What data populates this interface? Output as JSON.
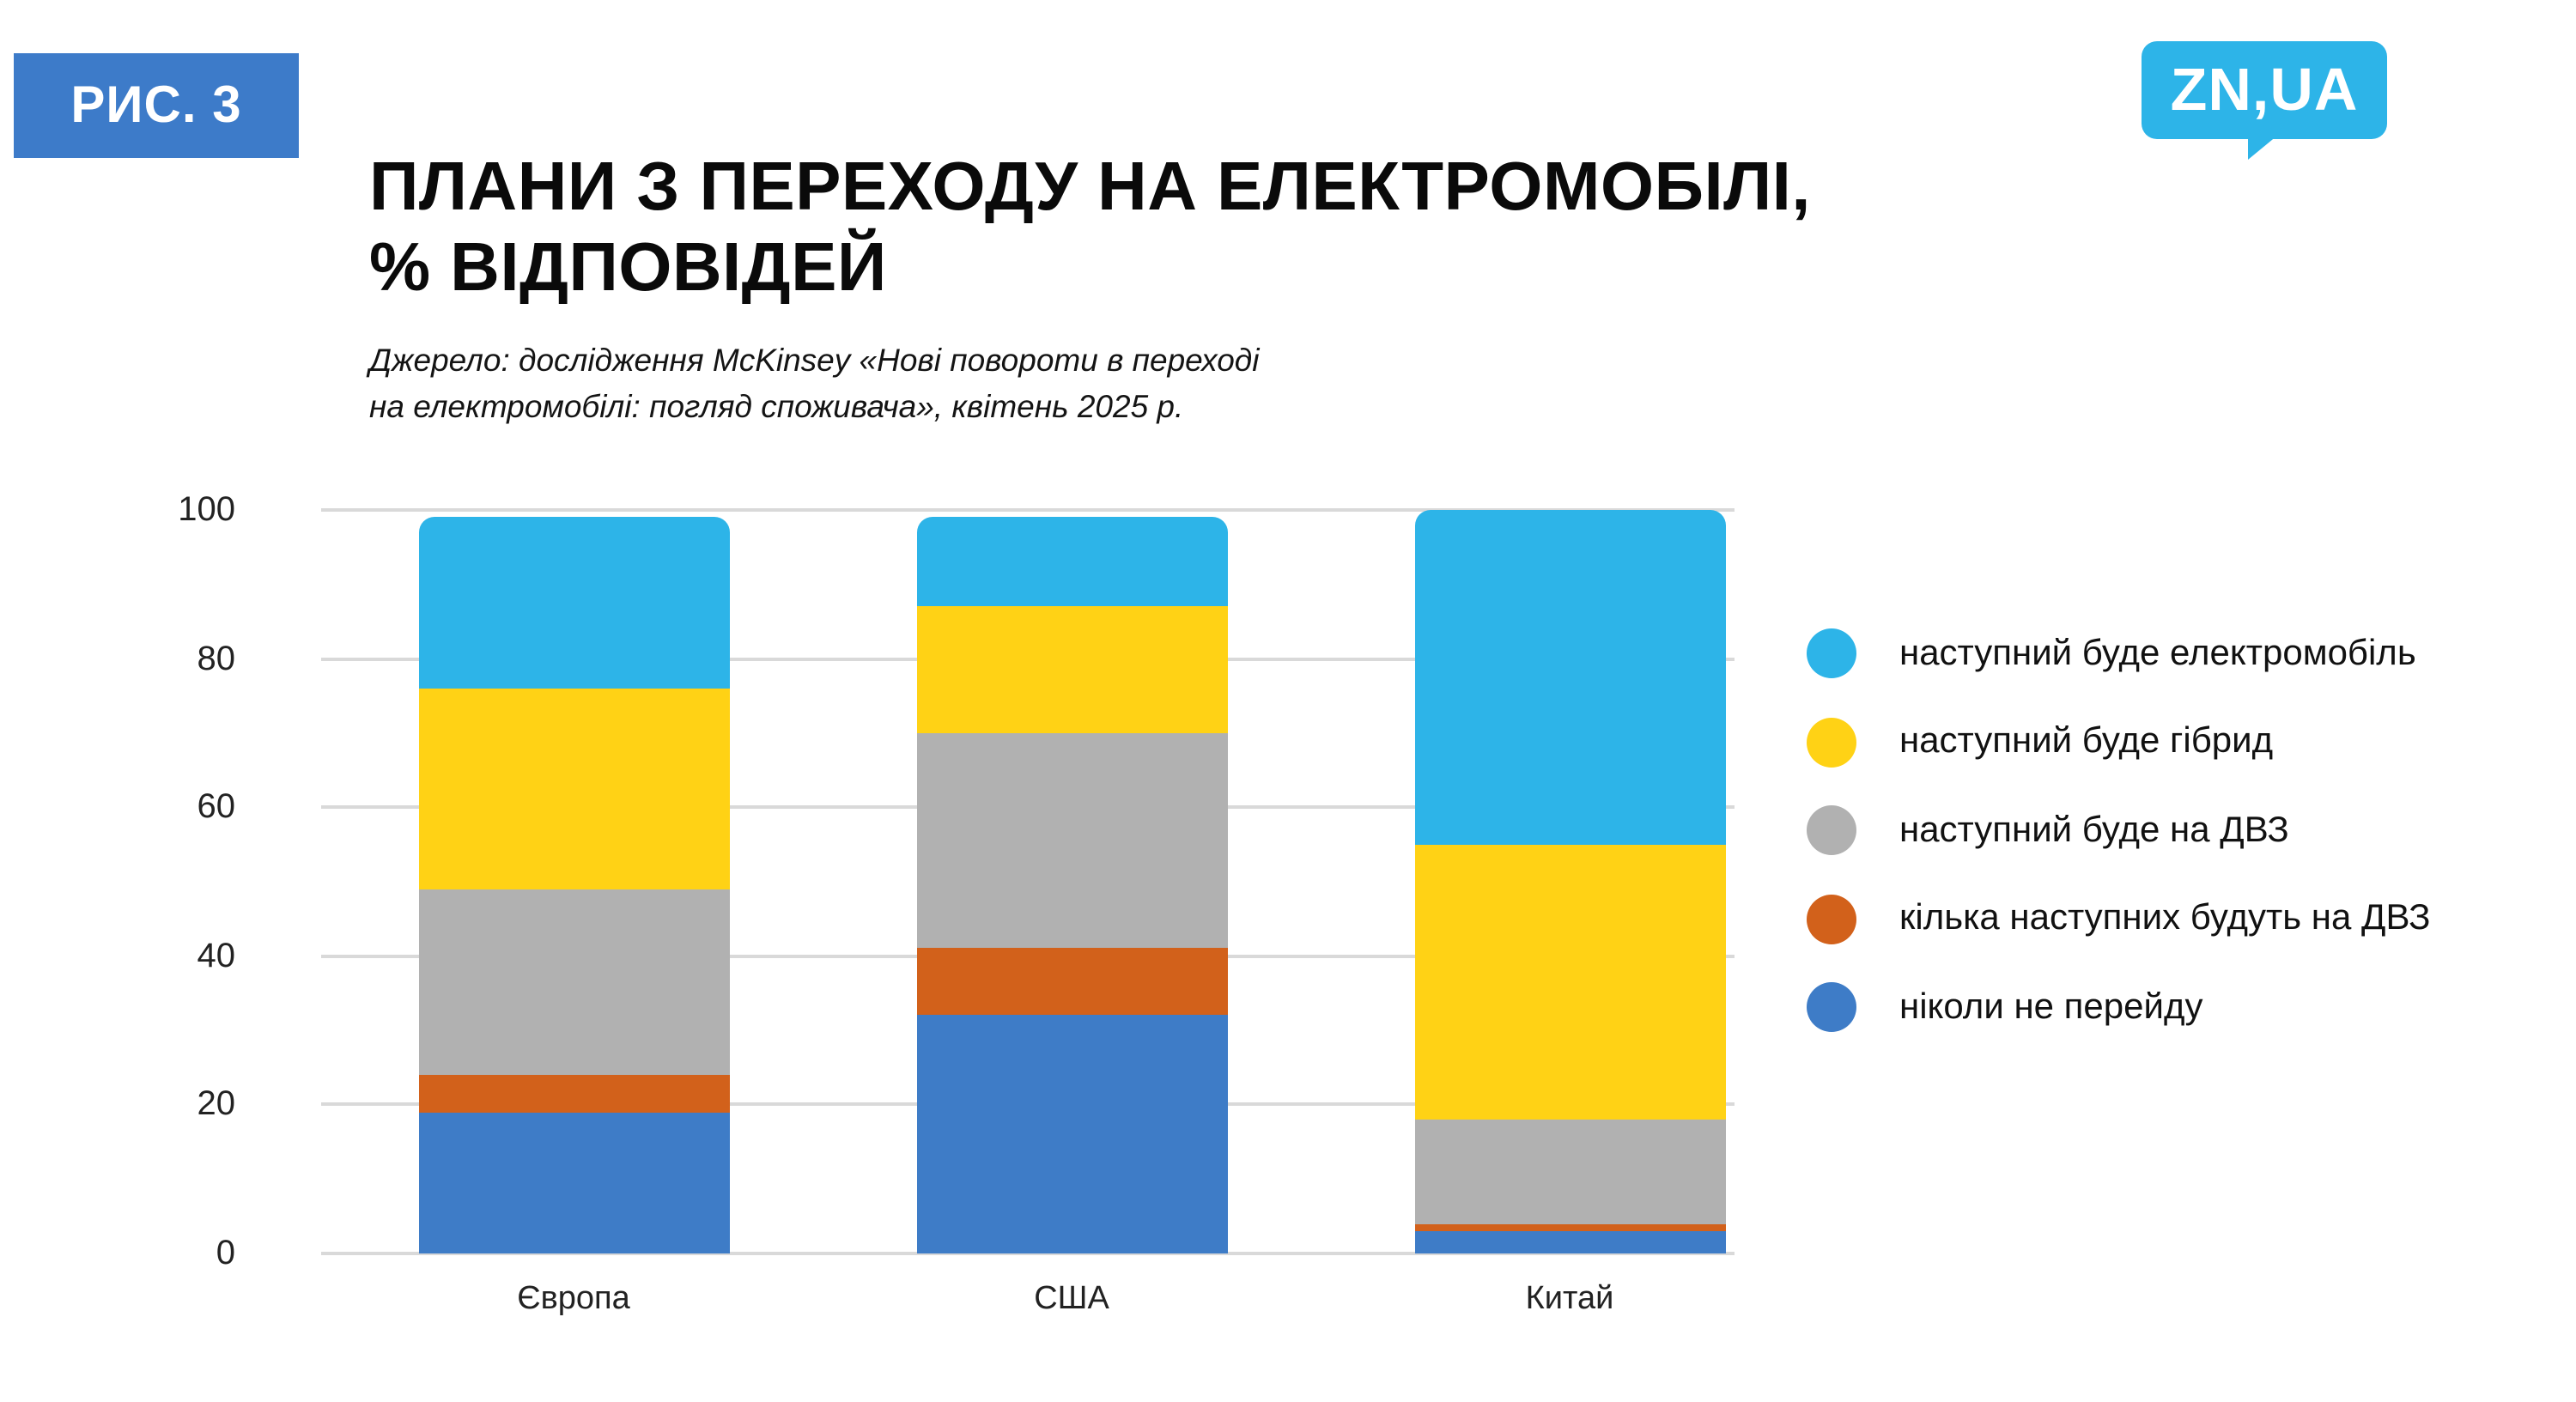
{
  "header": {
    "figure_badge": "РИС. 3",
    "title_line1": "ПЛАНИ З ПЕРЕХОДУ НА ЕЛЕКТРОМОБІЛІ,",
    "title_line2": "% ВІДПОВІДЕЙ",
    "source_line1": "Джерело: дослідження McKinsey «Нові повороти в переході",
    "source_line2": "на електромобілі: погляд споживача», квітень 2025 р.",
    "logo_text": "ZN,UA"
  },
  "colors": {
    "badge_blue": "#3d7bc9",
    "logo_cyan": "#2db4e8",
    "gridline_gray": "#d9d9d9"
  },
  "chart_data": {
    "type": "bar",
    "stacked": true,
    "title": "ПЛАНИ З ПЕРЕХОДУ НА ЕЛЕКТРОМОБІЛІ, % ВІДПОВІДЕЙ",
    "xlabel": "",
    "ylabel": "",
    "categories": [
      "Європа",
      "США",
      "Китай"
    ],
    "series": [
      {
        "name": "наступний буде електромобіль",
        "color": "#2db4e8",
        "values": [
          23,
          12,
          45
        ]
      },
      {
        "name": "наступний буде гібрид",
        "color": "#ffd215",
        "values": [
          27,
          17,
          37
        ]
      },
      {
        "name": "наступний буде на ДВЗ",
        "color": "#b1b1b1",
        "values": [
          25,
          29,
          14
        ]
      },
      {
        "name": "кілька наступних будуть на ДВЗ",
        "color": "#d2611b",
        "values": [
          5,
          9,
          1
        ]
      },
      {
        "name": "ніколи не перейду",
        "color": "#3e7cc7",
        "values": [
          19,
          32,
          3
        ]
      }
    ],
    "ylim": [
      0,
      100
    ],
    "yticks": [
      0,
      20,
      40,
      60,
      80,
      100
    ],
    "grid": true,
    "legend_position": "right"
  }
}
